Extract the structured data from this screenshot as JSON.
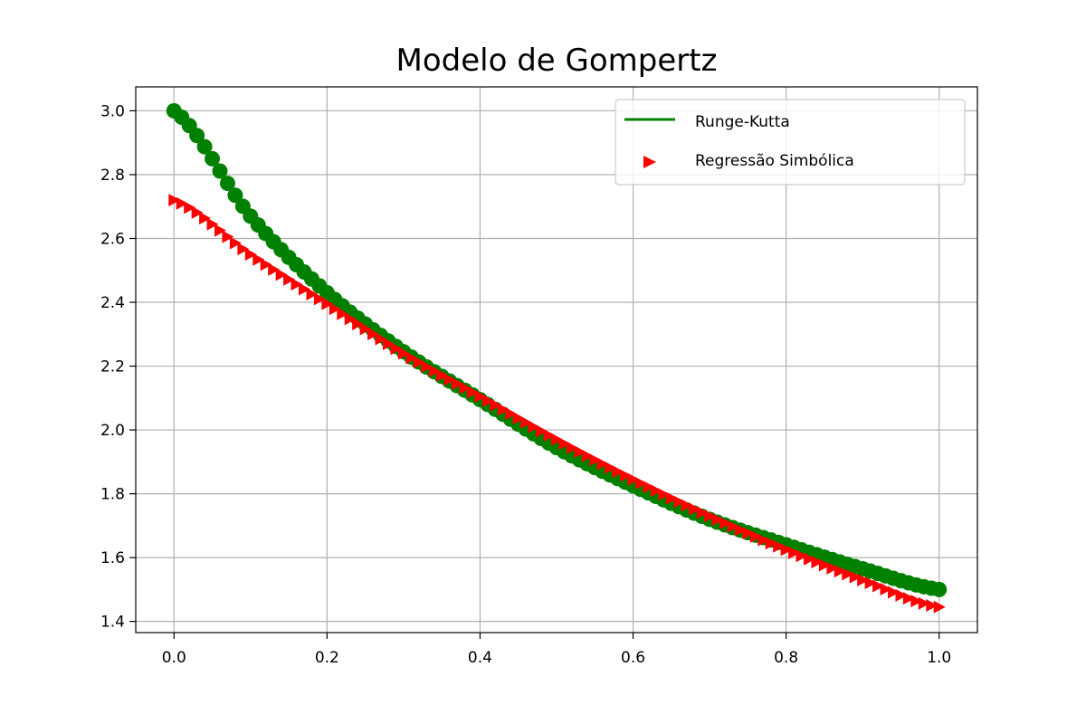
{
  "chart_data": {
    "type": "line",
    "title": "Modelo de Gompertz",
    "xlabel": "",
    "ylabel": "",
    "xlim": [
      -0.05,
      1.05
    ],
    "ylim": [
      1.365,
      3.075
    ],
    "x_ticks": [
      0.0,
      0.2,
      0.4,
      0.6,
      0.8,
      1.0
    ],
    "x_tick_labels": [
      "0.0",
      "0.2",
      "0.4",
      "0.6",
      "0.8",
      "1.0"
    ],
    "y_ticks": [
      1.4,
      1.6,
      1.8,
      2.0,
      2.2,
      2.4,
      2.6,
      2.8,
      3.0
    ],
    "y_tick_labels": [
      "1.4",
      "1.6",
      "1.8",
      "2.0",
      "2.2",
      "2.4",
      "2.6",
      "2.8",
      "3.0"
    ],
    "grid": true,
    "legend_position": "top-right",
    "series": [
      {
        "name": "Runge-Kutta",
        "color": "#008000",
        "marker": "circle",
        "legend_style": "line",
        "x": [
          0.0,
          0.1,
          0.2,
          0.3,
          0.4,
          0.5,
          0.6,
          0.7,
          0.8,
          0.9,
          1.0
        ],
        "y": [
          3.0,
          2.67,
          2.43,
          2.245,
          2.095,
          1.945,
          1.825,
          1.72,
          1.64,
          1.565,
          1.5
        ]
      },
      {
        "name": "Regressão Simbólica",
        "color": "#ff0000",
        "marker": "triangle-right",
        "legend_style": "marker",
        "x": [
          0.0,
          0.1,
          0.2,
          0.3,
          0.4,
          0.5,
          0.6,
          0.7,
          0.8,
          0.9,
          1.0
        ],
        "y": [
          2.72,
          2.55,
          2.395,
          2.24,
          2.105,
          1.97,
          1.845,
          1.73,
          1.625,
          1.53,
          1.445
        ]
      }
    ]
  }
}
